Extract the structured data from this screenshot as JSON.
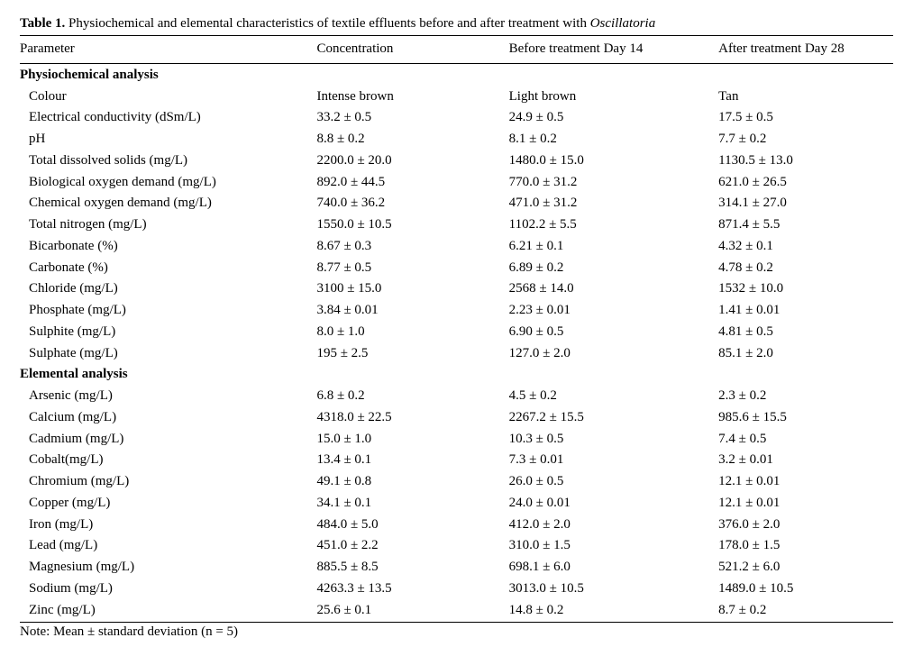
{
  "caption_prefix": "Table 1.",
  "caption_text": " Physiochemical and elemental characteristics of textile effluents before and after treatment with ",
  "caption_italic": "Oscillatoria",
  "headers": {
    "col1": "Parameter",
    "col2": "Concentration",
    "col3": "Before treatment Day 14",
    "col4": "After treatment Day 28"
  },
  "sections": [
    {
      "title": "Physiochemical analysis",
      "rows": [
        {
          "p": "Colour",
          "c": "Intense brown",
          "b": "Light brown",
          "a": "Tan"
        },
        {
          "p": "Electrical conductivity (dSm/L)",
          "c": "33.2 ± 0.5",
          "b": "24.9 ± 0.5",
          "a": "17.5 ± 0.5"
        },
        {
          "p": "pH",
          "c": "8.8 ± 0.2",
          "b": "8.1 ± 0.2",
          "a": "7.7 ± 0.2"
        },
        {
          "p": "Total dissolved solids (mg/L)",
          "c": "2200.0 ± 20.0",
          "b": "1480.0 ± 15.0",
          "a": "1130.5 ± 13.0"
        },
        {
          "p": "Biological oxygen demand (mg/L)",
          "c": "892.0 ± 44.5",
          "b": "770.0 ± 31.2",
          "a": "621.0 ± 26.5"
        },
        {
          "p": "Chemical oxygen demand (mg/L)",
          "c": "740.0 ± 36.2",
          "b": "471.0 ± 31.2",
          "a": "314.1 ± 27.0"
        },
        {
          "p": "Total nitrogen (mg/L)",
          "c": "1550.0 ± 10.5",
          "b": "1102.2 ± 5.5",
          "a": "871.4 ± 5.5"
        },
        {
          "p": "Bicarbonate (%)",
          "c": "8.67 ± 0.3",
          "b": "6.21 ± 0.1",
          "a": "4.32 ± 0.1"
        },
        {
          "p": "Carbonate (%)",
          "c": "8.77 ± 0.5",
          "b": "6.89 ± 0.2",
          "a": "4.78 ± 0.2"
        },
        {
          "p": "Chloride (mg/L)",
          "c": "3100 ± 15.0",
          "b": "2568 ± 14.0",
          "a": "1532 ± 10.0"
        },
        {
          "p": "Phosphate (mg/L)",
          "c": "3.84 ± 0.01",
          "b": "2.23 ± 0.01",
          "a": "1.41 ± 0.01"
        },
        {
          "p": "Sulphite (mg/L)",
          "c": "8.0 ± 1.0",
          "b": "6.90 ± 0.5",
          "a": "4.81 ± 0.5"
        },
        {
          "p": "Sulphate (mg/L)",
          "c": "195 ± 2.5",
          "b": "127.0 ± 2.0",
          "a": "85.1 ± 2.0"
        }
      ]
    },
    {
      "title": "Elemental analysis",
      "rows": [
        {
          "p": "Arsenic (mg/L)",
          "c": "6.8 ± 0.2",
          "b": "4.5 ± 0.2",
          "a": "2.3 ± 0.2"
        },
        {
          "p": "Calcium (mg/L)",
          "c": "4318.0 ± 22.5",
          "b": "2267.2 ± 15.5",
          "a": "985.6 ± 15.5"
        },
        {
          "p": "Cadmium (mg/L)",
          "c": "15.0 ± 1.0",
          "b": "10.3 ± 0.5",
          "a": "7.4 ± 0.5"
        },
        {
          "p": "Cobalt(mg/L)",
          "c": "13.4 ± 0.1",
          "b": "7.3 ± 0.01",
          "a": "3.2 ± 0.01"
        },
        {
          "p": "Chromium (mg/L)",
          "c": "49.1 ± 0.8",
          "b": "26.0 ± 0.5",
          "a": "12.1 ± 0.01"
        },
        {
          "p": "Copper (mg/L)",
          "c": "34.1 ± 0.1",
          "b": "24.0 ± 0.01",
          "a": "12.1 ± 0.01"
        },
        {
          "p": "Iron (mg/L)",
          "c": "484.0 ± 5.0",
          "b": "412.0 ± 2.0",
          "a": "376.0 ± 2.0"
        },
        {
          "p": "Lead (mg/L)",
          "c": "451.0 ± 2.2",
          "b": "310.0 ± 1.5",
          "a": "178.0 ± 1.5"
        },
        {
          "p": "Magnesium (mg/L)",
          "c": "885.5 ± 8.5",
          "b": "698.1 ± 6.0",
          "a": "521.2 ± 6.0"
        },
        {
          "p": "Sodium (mg/L)",
          "c": "4263.3 ± 13.5",
          "b": "3013.0 ± 10.5",
          "a": "1489.0 ± 10.5"
        },
        {
          "p": "Zinc (mg/L)",
          "c": "25.6 ± 0.1",
          "b": "14.8 ± 0.2",
          "a": "8.7 ± 0.2"
        }
      ]
    }
  ],
  "note": "Note: Mean ± standard deviation (n = 5)"
}
